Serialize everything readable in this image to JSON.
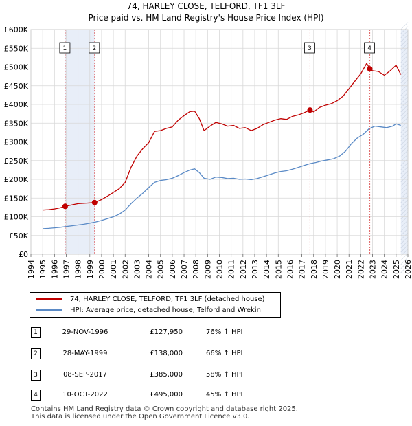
{
  "colors": {
    "property": "#c00000",
    "hpi": "#5a8ac6",
    "shade": "#e8eef8",
    "grid": "#d8d8d8",
    "marker_line": "#e06060"
  },
  "chart_data": {
    "type": "line",
    "title": "74, HARLEY CLOSE, TELFORD, TF1 3LF",
    "subtitle": "Price paid vs. HM Land Registry's House Price Index (HPI)",
    "ylim": [
      0,
      600000
    ],
    "xlim": [
      1994,
      2026
    ],
    "ytick_labels": [
      "£0",
      "£50K",
      "£100K",
      "£150K",
      "£200K",
      "£250K",
      "£300K",
      "£350K",
      "£400K",
      "£450K",
      "£500K",
      "£550K",
      "£600K"
    ],
    "xtick_labels": [
      "1994",
      "1995",
      "1996",
      "1997",
      "1998",
      "1999",
      "2000",
      "2001",
      "2002",
      "2003",
      "2004",
      "2005",
      "2006",
      "2007",
      "2008",
      "2009",
      "2010",
      "2011",
      "2012",
      "2013",
      "2014",
      "2015",
      "2016",
      "2017",
      "2018",
      "2019",
      "2020",
      "2021",
      "2022",
      "2023",
      "2024",
      "2025",
      "2026"
    ],
    "data_range": [
      1995.0,
      2025.4
    ],
    "series": [
      {
        "name": "74, HARLEY CLOSE, TELFORD, TF1 3LF (detached house)",
        "x": [
          1995.0,
          1995.5,
          1996.0,
          1996.5,
          1996.91,
          1997.5,
          1998.0,
          1998.5,
          1999.0,
          1999.41,
          2000.0,
          2000.5,
          2001.0,
          2001.5,
          2002.0,
          2002.5,
          2003.0,
          2003.5,
          2004.0,
          2004.5,
          2005.0,
          2005.5,
          2006.0,
          2006.5,
          2007.0,
          2007.5,
          2007.9,
          2008.3,
          2008.7,
          2009.2,
          2009.7,
          2010.2,
          2010.7,
          2011.2,
          2011.7,
          2012.2,
          2012.7,
          2013.2,
          2013.7,
          2014.2,
          2014.7,
          2015.2,
          2015.7,
          2016.2,
          2016.7,
          2017.2,
          2017.69,
          2018.0,
          2018.5,
          2019.0,
          2019.5,
          2020.0,
          2020.5,
          2021.0,
          2021.5,
          2022.0,
          2022.5,
          2022.77,
          2023.0,
          2023.5,
          2024.0,
          2024.5,
          2025.0,
          2025.4
        ],
        "values": [
          118000,
          119000,
          121000,
          124000,
          127950,
          132000,
          135000,
          136000,
          137000,
          138000,
          146000,
          155000,
          165000,
          175000,
          192000,
          232000,
          262000,
          282000,
          298000,
          328000,
          330000,
          336000,
          340000,
          358000,
          370000,
          381000,
          382000,
          362000,
          330000,
          342000,
          352000,
          348000,
          342000,
          344000,
          336000,
          338000,
          330000,
          336000,
          346000,
          352000,
          358000,
          362000,
          360000,
          368000,
          372000,
          378000,
          385000,
          380000,
          392000,
          398000,
          402000,
          410000,
          422000,
          442000,
          462000,
          482000,
          510000,
          495000,
          490000,
          488000,
          478000,
          490000,
          505000,
          480000
        ]
      },
      {
        "name": "HPI: Average price, detached house, Telford and Wrekin",
        "x": [
          1995.0,
          1995.5,
          1996.0,
          1996.5,
          1997.0,
          1997.5,
          1998.0,
          1998.5,
          1999.0,
          1999.5,
          2000.0,
          2000.5,
          2001.0,
          2001.5,
          2002.0,
          2002.5,
          2003.0,
          2003.5,
          2004.0,
          2004.5,
          2005.0,
          2005.5,
          2006.0,
          2006.5,
          2007.0,
          2007.5,
          2007.9,
          2008.3,
          2008.7,
          2009.2,
          2009.7,
          2010.2,
          2010.7,
          2011.2,
          2011.7,
          2012.2,
          2012.7,
          2013.2,
          2013.7,
          2014.2,
          2014.7,
          2015.2,
          2015.7,
          2016.2,
          2016.7,
          2017.2,
          2017.7,
          2018.2,
          2018.7,
          2019.2,
          2019.7,
          2020.2,
          2020.7,
          2021.2,
          2021.7,
          2022.2,
          2022.7,
          2023.2,
          2023.7,
          2024.2,
          2024.7,
          2025.0,
          2025.4
        ],
        "values": [
          68000,
          69000,
          70500,
          72000,
          74000,
          76000,
          78000,
          80000,
          83000,
          86000,
          90000,
          95000,
          100000,
          107000,
          118000,
          135000,
          150000,
          163000,
          178000,
          192000,
          197000,
          199000,
          203000,
          210000,
          218000,
          225000,
          228000,
          218000,
          203000,
          200000,
          206000,
          205000,
          202000,
          203000,
          200000,
          201000,
          199000,
          202000,
          207000,
          212000,
          217000,
          221000,
          223000,
          227000,
          232000,
          237000,
          242000,
          245000,
          249000,
          252000,
          255000,
          262000,
          275000,
          295000,
          310000,
          320000,
          335000,
          342000,
          340000,
          338000,
          342000,
          348000,
          344000
        ]
      }
    ],
    "sale_markers": [
      {
        "label": "1",
        "x": 1996.91,
        "y": 127950
      },
      {
        "label": "2",
        "x": 1999.41,
        "y": 138000
      },
      {
        "label": "3",
        "x": 2017.69,
        "y": 385000
      },
      {
        "label": "4",
        "x": 2022.77,
        "y": 495000
      }
    ]
  },
  "legend": {
    "property_label": "74, HARLEY CLOSE, TELFORD, TF1 3LF (detached house)",
    "hpi_label": "HPI: Average price, detached house, Telford and Wrekin"
  },
  "sales": [
    {
      "num": "1",
      "date": "29-NOV-1996",
      "price": "£127,950",
      "pct": "76% ↑ HPI"
    },
    {
      "num": "2",
      "date": "28-MAY-1999",
      "price": "£138,000",
      "pct": "66% ↑ HPI"
    },
    {
      "num": "3",
      "date": "08-SEP-2017",
      "price": "£385,000",
      "pct": "58% ↑ HPI"
    },
    {
      "num": "4",
      "date": "10-OCT-2022",
      "price": "£495,000",
      "pct": "45% ↑ HPI"
    }
  ],
  "footer": {
    "line1": "Contains HM Land Registry data © Crown copyright and database right 2025.",
    "line2": "This data is licensed under the Open Government Licence v3.0."
  }
}
